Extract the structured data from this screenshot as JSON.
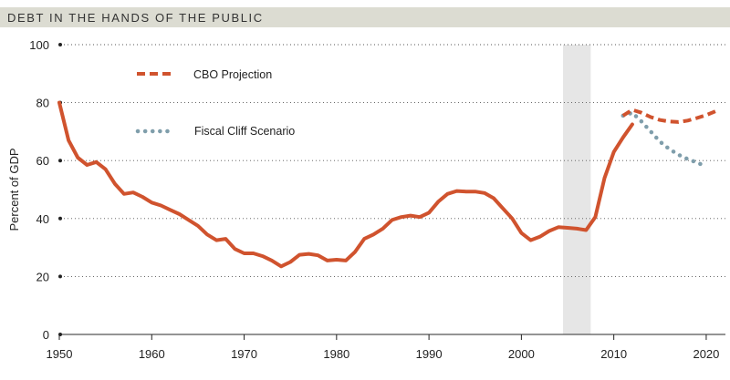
{
  "header": {
    "title": "DEBT IN THE HANDS OF THE PUBLIC"
  },
  "colors": {
    "historical": "#d0532e",
    "projection": "#d0532e",
    "fiscal_cliff": "#7f9eab",
    "recession_band": "#e6e6e6",
    "grid": "#555555",
    "header_band": "#dcdcd2"
  },
  "chart_data": {
    "type": "line",
    "title": "DEBT IN THE HANDS OF THE PUBLIC",
    "xlabel": "",
    "ylabel": "Percent of GDP",
    "xlim": [
      1950,
      2020
    ],
    "ylim": [
      0,
      100
    ],
    "x_ticks": [
      1950,
      1960,
      1970,
      1980,
      1990,
      2000,
      2010,
      2020
    ],
    "y_ticks": [
      0,
      20,
      40,
      60,
      80,
      100
    ],
    "grid": "dotted horizontal",
    "shaded_region": {
      "x_start": 2004.5,
      "x_end": 2007.5
    },
    "legend_position": "top-left",
    "series": [
      {
        "name": "",
        "style": "solid",
        "x": [
          1950,
          1951,
          1952,
          1953,
          1954,
          1955,
          1956,
          1957,
          1958,
          1959,
          1960,
          1961,
          1962,
          1963,
          1964,
          1965,
          1966,
          1967,
          1968,
          1969,
          1970,
          1971,
          1972,
          1973,
          1974,
          1975,
          1976,
          1977,
          1978,
          1979,
          1980,
          1981,
          1982,
          1983,
          1984,
          1985,
          1986,
          1987,
          1988,
          1989,
          1990,
          1991,
          1992,
          1993,
          1994,
          1995,
          1996,
          1997,
          1998,
          1999,
          2000,
          2001,
          2002,
          2003,
          2004,
          2005,
          2006,
          2007,
          2008,
          2009,
          2010,
          2011,
          2012
        ],
        "y": [
          80,
          67,
          61,
          58.5,
          59.5,
          57,
          52,
          48.5,
          49,
          47.5,
          45.5,
          44.5,
          43,
          41.5,
          39.5,
          37.5,
          34.5,
          32.5,
          33,
          29.5,
          28,
          28,
          27,
          25.5,
          23.5,
          25,
          27.5,
          27.8,
          27.3,
          25.5,
          25.8,
          25.5,
          28.5,
          33,
          34.5,
          36.5,
          39.5,
          40.5,
          41,
          40.5,
          42,
          45.8,
          48.5,
          49.5,
          49.3,
          49.3,
          48.8,
          47,
          43.5,
          40,
          35,
          32.5,
          33.7,
          35.7,
          37,
          36.8,
          36.5,
          36,
          40.5,
          54,
          63,
          68,
          72.5
        ]
      },
      {
        "name": "CBO Projection",
        "style": "dashed",
        "x": [
          2011,
          2012,
          2013,
          2014,
          2015,
          2016,
          2017,
          2018,
          2019,
          2020,
          2021
        ],
        "y": [
          75.5,
          77.5,
          76.5,
          75,
          74,
          73.5,
          73.3,
          73.8,
          74.7,
          75.7,
          77
        ]
      },
      {
        "name": "Fiscal Cliff Scenario",
        "style": "dotted",
        "x": [
          2011,
          2012,
          2013,
          2014,
          2015,
          2016,
          2017,
          2018,
          2019,
          2020
        ],
        "y": [
          75.5,
          76.5,
          73.5,
          70,
          66.5,
          64,
          62,
          60.5,
          59.3,
          58
        ]
      }
    ]
  }
}
